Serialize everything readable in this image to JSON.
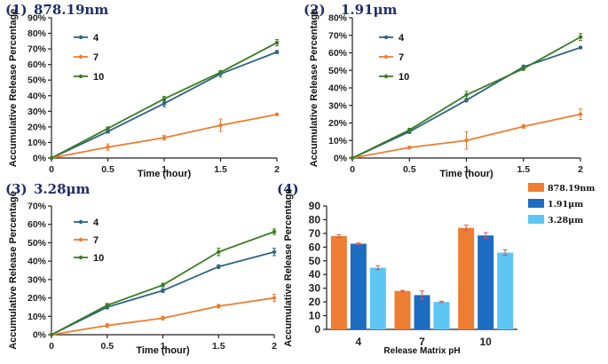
{
  "colors": {
    "pH4": "#2e6384",
    "pH7": "#ed7d31",
    "pH10": "#3a7d22",
    "bar1": "#ed7d31",
    "bar2": "#1c6cc1",
    "bar3": "#5ec6f2",
    "label": "#1f2d6b",
    "error": "#d9534f"
  },
  "chart_data": [
    {
      "panel": "(1)",
      "title": "878.19nm",
      "type": "line",
      "xlabel": "Time (hour)",
      "ylabel": "Accumulative Release Percentage",
      "x": [
        0,
        0.5,
        1,
        1.5,
        2
      ],
      "x_tick_labels": [
        "0",
        "0.5",
        "1",
        "1.5",
        "2"
      ],
      "ylim": [
        0,
        90
      ],
      "y_ticks": [
        "0%",
        "10%",
        "20%",
        "30%",
        "40%",
        "50%",
        "60%",
        "70%",
        "80%",
        "90%"
      ],
      "legend": [
        "4",
        "7",
        "10"
      ],
      "series": [
        {
          "name": "4",
          "values": [
            0,
            17,
            35,
            54,
            68
          ],
          "errors": [
            0,
            1,
            2,
            2,
            1
          ]
        },
        {
          "name": "7",
          "values": [
            0,
            7,
            13,
            21,
            28
          ],
          "errors": [
            0,
            2,
            1.5,
            4,
            0.5
          ]
        },
        {
          "name": "10",
          "values": [
            0,
            19,
            38,
            55,
            74
          ],
          "errors": [
            0,
            1,
            1.5,
            1,
            2
          ]
        }
      ]
    },
    {
      "panel": "(2)",
      "title": "1.91μm",
      "type": "line",
      "xlabel": "Time (hour)",
      "ylabel": "Accumulative Release Percentage",
      "x": [
        0,
        0.5,
        1,
        1.5,
        2
      ],
      "x_tick_labels": [
        "0",
        "0.5",
        "1",
        "1.5",
        "2"
      ],
      "ylim": [
        0,
        80
      ],
      "y_ticks": [
        "0%",
        "10%",
        "20%",
        "30%",
        "40%",
        "50%",
        "60%",
        "70%",
        "80%"
      ],
      "legend": [
        "4",
        "7",
        "10"
      ],
      "series": [
        {
          "name": "4",
          "values": [
            0,
            15,
            33,
            52,
            63
          ],
          "errors": [
            0,
            1,
            1,
            1,
            0.5
          ]
        },
        {
          "name": "7",
          "values": [
            0,
            6,
            10,
            18,
            25
          ],
          "errors": [
            0,
            0.5,
            5,
            1,
            3
          ]
        },
        {
          "name": "10",
          "values": [
            0,
            16,
            36,
            51,
            69
          ],
          "errors": [
            0,
            1,
            2,
            1,
            2
          ]
        }
      ]
    },
    {
      "panel": "(3)",
      "title": "3.28μm",
      "type": "line",
      "xlabel": "Time (hour)",
      "ylabel": "Accumulative Release Percentage",
      "x": [
        0,
        0.5,
        1,
        1.5,
        2
      ],
      "x_tick_labels": [
        "0",
        "0.5",
        "1",
        "1.5",
        "2"
      ],
      "ylim": [
        0,
        70
      ],
      "y_ticks": [
        "0%",
        "10%",
        "20%",
        "30%",
        "40%",
        "50%",
        "60%",
        "70%"
      ],
      "legend": [
        "4",
        "7",
        "10"
      ],
      "series": [
        {
          "name": "4",
          "values": [
            0,
            15,
            24,
            37,
            45
          ],
          "errors": [
            0,
            1,
            1,
            1,
            2
          ]
        },
        {
          "name": "7",
          "values": [
            0,
            5,
            9,
            15.5,
            20
          ],
          "errors": [
            0,
            1,
            1,
            1,
            2
          ]
        },
        {
          "name": "10",
          "values": [
            0,
            16,
            27,
            45,
            56
          ],
          "errors": [
            0,
            1,
            1,
            2,
            1.5
          ]
        }
      ]
    },
    {
      "panel": "(4)",
      "title": "",
      "type": "bar",
      "xlabel": "Release Matrix pH",
      "ylabel": "Accumulative Release Percentage",
      "categories": [
        "4",
        "7",
        "10"
      ],
      "ylim": [
        0,
        90
      ],
      "y_ticks": [
        "0",
        "10",
        "20",
        "30",
        "40",
        "50",
        "60",
        "70",
        "80",
        "90"
      ],
      "legend": [
        "878.19nm",
        "1.91μm",
        "3.28μm"
      ],
      "series": [
        {
          "name": "878.19nm",
          "values": [
            68,
            28,
            74
          ],
          "errors": [
            1,
            0.5,
            2
          ]
        },
        {
          "name": "1.91μm",
          "values": [
            62.5,
            25,
            68.5
          ],
          "errors": [
            0.5,
            3,
            2
          ]
        },
        {
          "name": "3.28μm",
          "values": [
            45,
            20,
            56
          ],
          "errors": [
            1.5,
            0.5,
            2
          ]
        }
      ]
    }
  ]
}
